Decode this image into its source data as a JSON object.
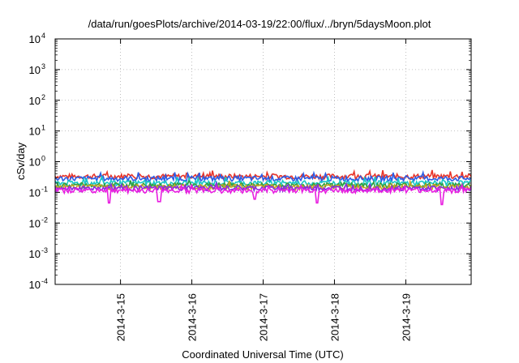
{
  "chart_data": {
    "type": "line",
    "title": "/data/run/goesPlots/archive/2014-03-19/22:00/flux/../bryn/5daysMoon.plot",
    "xlabel": "Coordinated Universal Time (UTC)",
    "ylabel": "cSv/day",
    "y_scale": "log",
    "ylim": [
      0.0001,
      10000
    ],
    "y_ticks": [
      {
        "base": "10",
        "exp": "4"
      },
      {
        "base": "10",
        "exp": "3"
      },
      {
        "base": "10",
        "exp": "2"
      },
      {
        "base": "10",
        "exp": "1"
      },
      {
        "base": "10",
        "exp": "0"
      },
      {
        "base": "10",
        "exp": "-1"
      },
      {
        "base": "10",
        "exp": "-2"
      },
      {
        "base": "10",
        "exp": "-3"
      },
      {
        "base": "10",
        "exp": "-4"
      }
    ],
    "xlim": [
      "2014-03-14 02:00",
      "2014-03-19 22:00"
    ],
    "x_ticks": [
      "2014-3-15",
      "2014-3-16",
      "2014-3-17",
      "2014-3-18",
      "2014-3-19"
    ],
    "grid": true,
    "series": [
      {
        "color": "#e8352a",
        "level": 0.33,
        "values_note": "",
        "dips": []
      },
      {
        "color": "#2b5ce6",
        "level": 0.28,
        "dips": []
      },
      {
        "color": "#19c8c8",
        "level": 0.2,
        "dips": []
      },
      {
        "color": "#30a040",
        "level": 0.17,
        "dips": []
      },
      {
        "color": "#c8a020",
        "level": 0.15,
        "dips": []
      },
      {
        "color": "#8a2be2",
        "level": 0.135,
        "dips": []
      },
      {
        "color": "#e81ee0",
        "level": 0.115,
        "dips": [
          0.045,
          0.05,
          0.06,
          0.045,
          0.04
        ]
      }
    ]
  }
}
